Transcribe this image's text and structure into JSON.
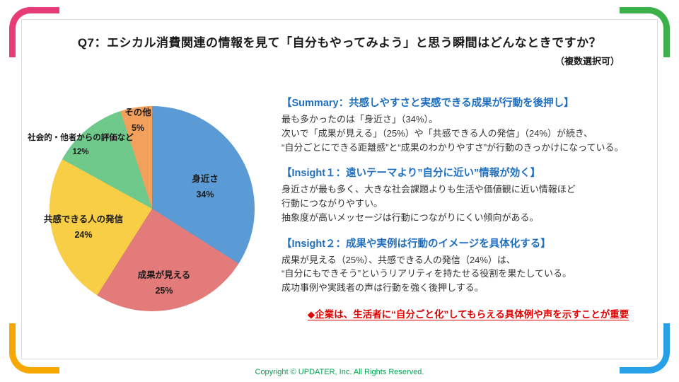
{
  "slide": {
    "title": "Q7：エシカル消費関連の情報を見て「自分もやってみよう」と思う瞬間はどんなときですか？",
    "subtitle": "（複数選択可）",
    "footer": "Copyright © UPDATER, Inc. All Rights Reserved."
  },
  "chart_data": {
    "type": "pie",
    "title": "エシカル消費関連の情報を見て「自分もやってみよう」と思う瞬間",
    "categories": [
      "身近さ",
      "成果が見える",
      "共感できる人の発信",
      "社会的・他者からの評価など",
      "その他"
    ],
    "values": [
      34,
      25,
      24,
      12,
      5
    ],
    "value_labels": [
      "34%",
      "25%",
      "24%",
      "12%",
      "5%"
    ],
    "colors": [
      "#5B9BD5",
      "#E47B7B",
      "#F7CE46",
      "#6EC98B",
      "#F2A05C"
    ],
    "start_angle_deg": 0,
    "direction": "clockwise",
    "legend_position": "labels-on-chart"
  },
  "analysis": {
    "summary": {
      "heading": "【Summary：共感しやすさと実感できる成果が行動を後押し】",
      "lines": [
        "最も多かったのは「身近さ」（34%）。",
        "次いで「成果が見える」（25%）や「共感できる人の発信」（24%）が続き、",
        "“自分ごとにできる距離感”と“成果のわかりやすさ”が行動のきっかけになっている。"
      ]
    },
    "insight1": {
      "heading": "【Insight１：遠いテーマより”自分に近い”情報が効く】",
      "lines": [
        "身近さが最も多く、大きな社会課題よりも生活や価値観に近い情報ほど",
        "行動につながりやすい。",
        "抽象度が高いメッセージは行動につながりにくい傾向がある。"
      ]
    },
    "insight2": {
      "heading": "【Insight２：成果や実例は行動のイメージを具体化する】",
      "lines": [
        "成果が見える（25%）、共感できる人の発信（24%）は、",
        "“自分にもできそう”というリアリティを持たせる役割を果たしている。",
        "成功事例や実践者の声は行動を強く後押しする。"
      ]
    },
    "conclusion": "◆企業は、生活者に“自分ごと化”してもらえる具体例や声を示すことが重要"
  },
  "colors": {
    "heading_blue": "#1F6FC0",
    "conclusion_red": "#E00000",
    "footer_green": "#00A551",
    "corner_pink": "#E73C77",
    "corner_green": "#3CB049",
    "corner_orange": "#F7A800",
    "corner_blue": "#28A0E8"
  }
}
